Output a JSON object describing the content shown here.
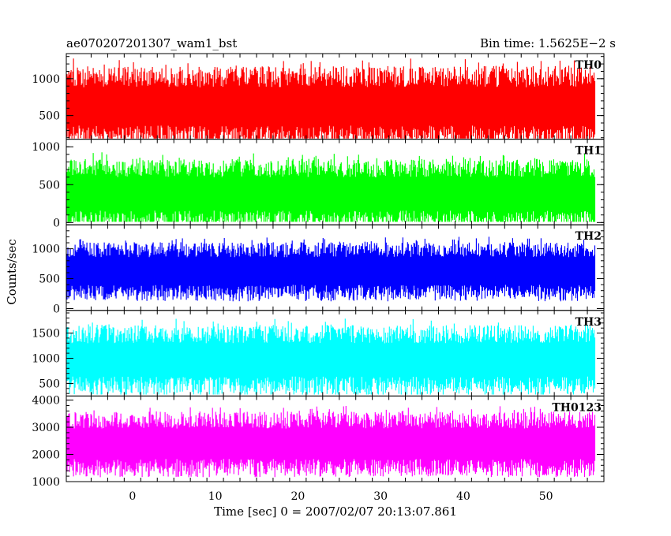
{
  "chart_data": {
    "type": "line",
    "title_left": "ae070207201307_wam1_bst",
    "title_right": "Bin time: 1.5625E−2 s",
    "xlabel": "Time [sec] 0 = 2007/02/07 20:13:07.861",
    "ylabel": "Counts/sec",
    "xlim": [
      -8,
      57
    ],
    "data_range": [
      -7.9,
      55.9
    ],
    "bin_time": 0.015625,
    "x_ticks": [
      0,
      10,
      20,
      30,
      40,
      50
    ],
    "grid": false,
    "panels": [
      {
        "name": "TH0",
        "color": "#ff0000",
        "ylim": [
          180,
          1340
        ],
        "y_ticks": [
          500,
          1000
        ],
        "y_tick_labels": [
          "500",
          "1000"
        ],
        "mean": 650,
        "spread": 260,
        "ymin": 190,
        "ymax": 1330
      },
      {
        "name": "TH1",
        "color": "#00ff00",
        "ylim": [
          -30,
          1100
        ],
        "y_ticks": [
          0,
          500,
          1000
        ],
        "y_tick_labels": [
          "0",
          "500",
          "1000"
        ],
        "mean": 400,
        "spread": 220,
        "ymin": 10,
        "ymax": 1090
      },
      {
        "name": "TH2",
        "color": "#0000ff",
        "ylim": [
          -30,
          1400
        ],
        "y_ticks": [
          0,
          500,
          1000
        ],
        "y_tick_labels": [
          "0",
          "500",
          "1000"
        ],
        "mean": 650,
        "spread": 230,
        "ymin": 20,
        "ymax": 1390
      },
      {
        "name": "TH3",
        "color": "#00ffff",
        "ylim": [
          250,
          1950
        ],
        "y_ticks": [
          500,
          1000,
          1500
        ],
        "y_tick_labels": [
          "500",
          "1000",
          "1500"
        ],
        "mean": 1000,
        "spread": 330,
        "ymin": 280,
        "ymax": 1930
      },
      {
        "name": "TH0123",
        "color": "#ff00ff",
        "ylim": [
          1000,
          4150
        ],
        "y_ticks": [
          1000,
          2000,
          3000,
          4000
        ],
        "y_tick_labels": [
          "1000",
          "2000",
          "3000",
          "4000"
        ],
        "mean": 2450,
        "spread": 560,
        "ymin": 1120,
        "ymax": 4130
      }
    ]
  }
}
